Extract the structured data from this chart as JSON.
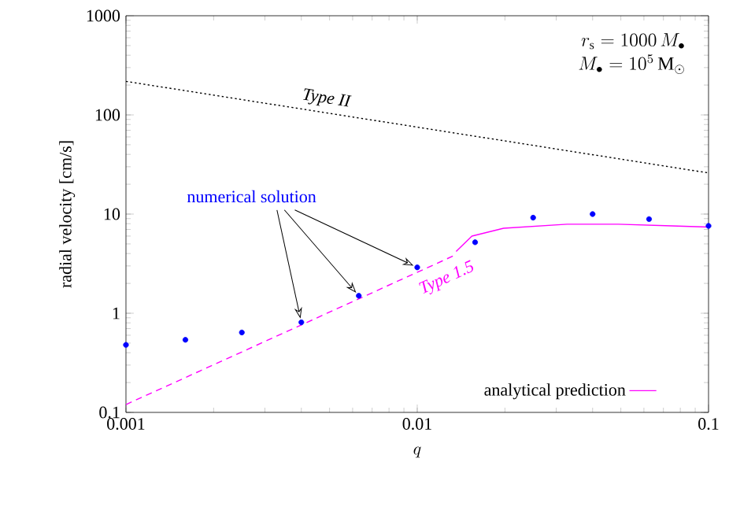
{
  "chart_data": {
    "type": "line",
    "xlabel": "q",
    "ylabel": "radial velocity  [cm/s]",
    "xlim": [
      0.001,
      0.1
    ],
    "xticks": [
      0.001,
      0.01,
      0.1
    ],
    "ylim": [
      0.1,
      1000
    ],
    "yticks": [
      0.1,
      1,
      10,
      100,
      1000
    ],
    "log": "xy",
    "grid": false,
    "legend": "bottom right",
    "annotations": [
      "r_{\\mathrm{s}} = 1000\\,M_\\bullet",
      "M_\\bullet = 10^5\\,\\mathrm{M}_\\odot"
    ],
    "series": [
      {
        "name": "numerical solution",
        "type": "scatter",
        "marker": "circle",
        "color": "#0000ff",
        "x": [
          0.001,
          0.0016,
          0.0025,
          0.004,
          0.0063,
          0.01,
          0.0158,
          0.025,
          0.04,
          0.0625,
          0.1
        ],
        "values": [
          0.48,
          0.54,
          0.64,
          0.81,
          1.5,
          2.9,
          5.2,
          9.2,
          10,
          8.9,
          7.6
        ]
      },
      {
        "name": "analytical prediction",
        "line_style": "solid",
        "color": "#ff00ff",
        "x": [
          0.0136,
          0.0154,
          0.0198,
          0.0327,
          0.049,
          0.0748,
          0.1
        ],
        "values": [
          4.2,
          6.0,
          7.2,
          7.9,
          7.9,
          7.6,
          7.4
        ]
      },
      {
        "name": "Type 1.5",
        "line_style": "dashed",
        "color": "#ff00ff",
        "x": [
          0.001,
          0.0136
        ],
        "values": [
          0.12,
          3.9
        ]
      },
      {
        "name": "Type II",
        "line_style": "dotted",
        "color": "#000000",
        "x": [
          0.001,
          0.1
        ],
        "values": [
          218,
          26
        ]
      }
    ]
  }
}
